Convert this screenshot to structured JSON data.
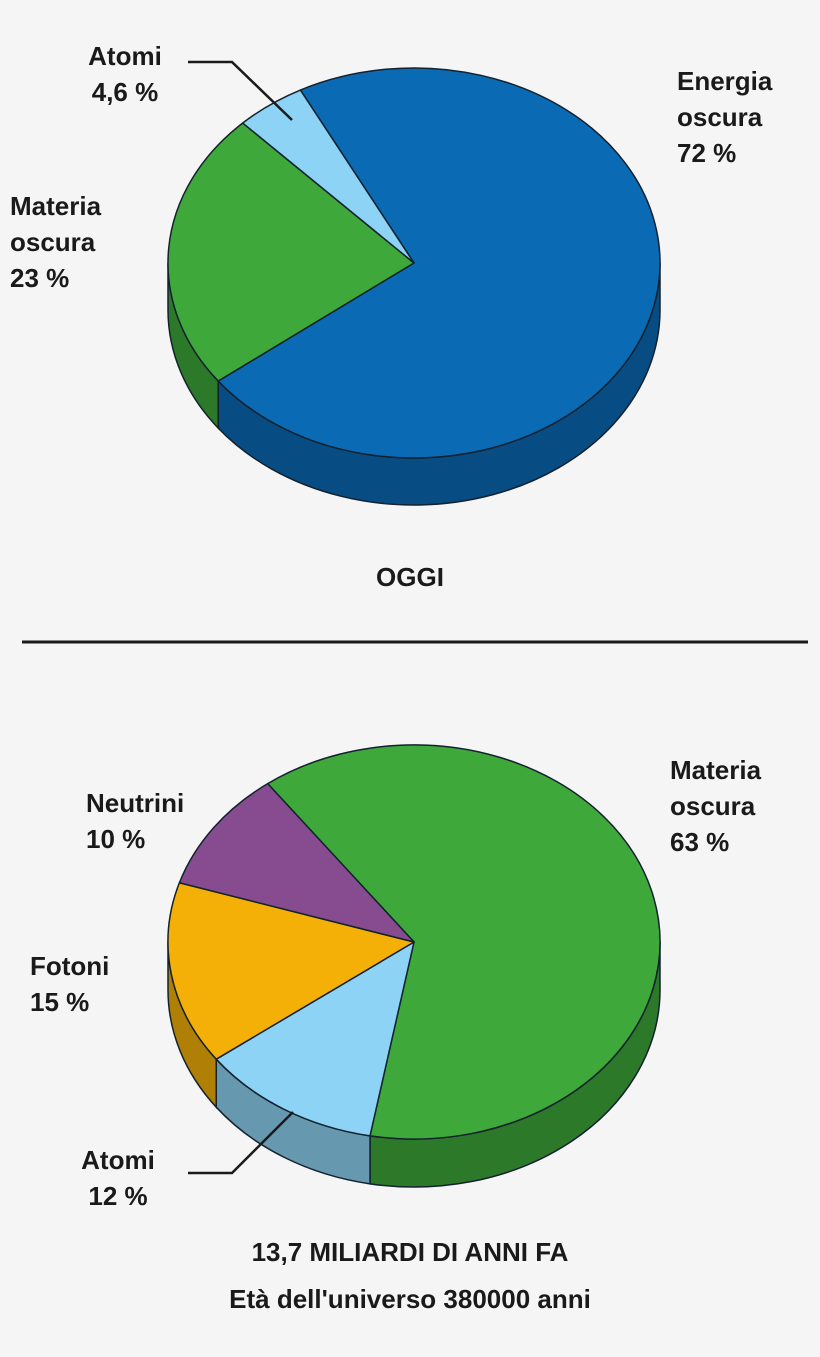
{
  "chart_data": [
    {
      "type": "pie",
      "title": "OGGI",
      "categories": [
        "Energia oscura",
        "Materia oscura",
        "Atomi"
      ],
      "values": [
        72,
        23,
        4.6
      ],
      "value_labels": [
        "72 %",
        "23 %",
        "4,6 %"
      ],
      "colors": [
        "#0a6ab4",
        "#3fa83a",
        "#8dd3f5"
      ]
    },
    {
      "type": "pie",
      "title": "13,7 MILIARDI DI ANNI FA",
      "subtitle": "Età dell'universo 380000 anni",
      "categories": [
        "Materia oscura",
        "Atomi",
        "Fotoni",
        "Neutrini"
      ],
      "values": [
        63,
        12,
        15,
        10
      ],
      "value_labels": [
        "63 %",
        "12 %",
        "15 %",
        "10 %"
      ],
      "colors": [
        "#3fa83a",
        "#8dd3f5",
        "#f5b007",
        "#864c8f"
      ]
    }
  ]
}
